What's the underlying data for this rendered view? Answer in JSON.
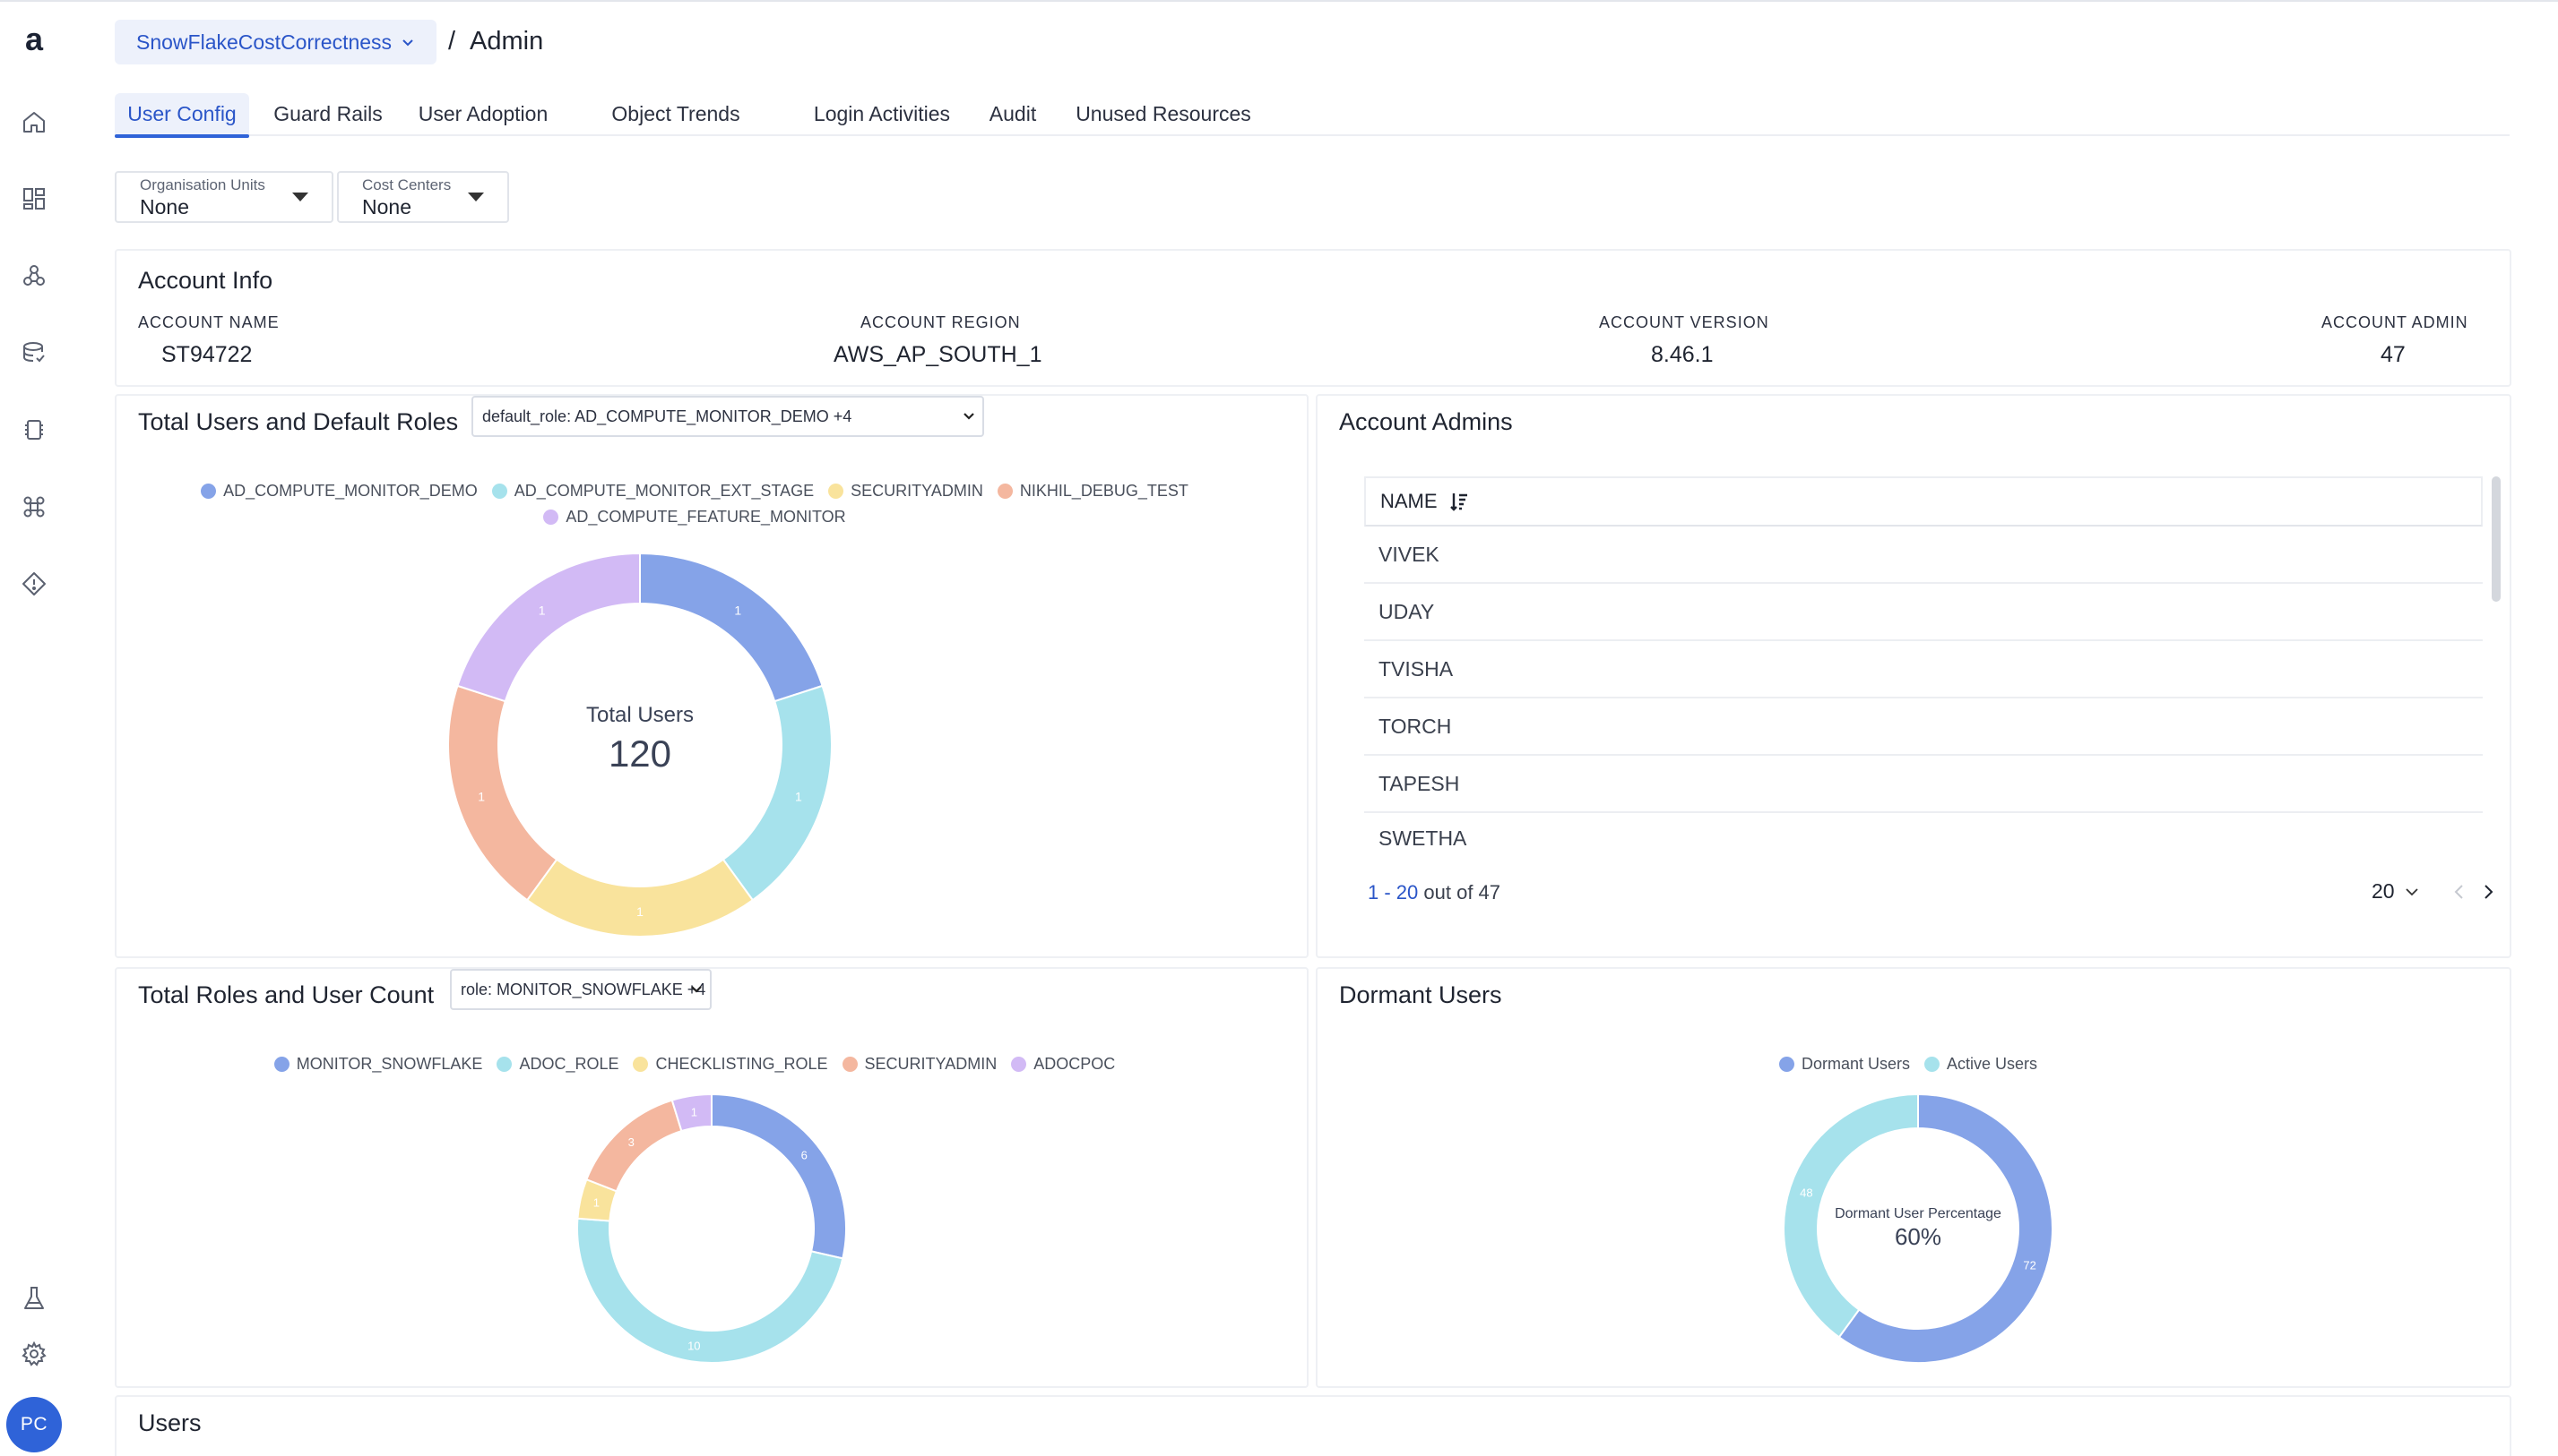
{
  "app": {
    "logo_letter": "a",
    "user_initials": "PC"
  },
  "nav_icons": [
    "home-icon",
    "dashboard-icon",
    "nodes-icon",
    "database-icon",
    "cpu-icon",
    "command-icon",
    "diamond-icon",
    "flask-icon",
    "gear-icon"
  ],
  "breadcrumb": {
    "workspace": "SnowFlakeCostCorrectness",
    "separator": "/",
    "page": "Admin"
  },
  "tabs": [
    {
      "label": "User Config",
      "active": true
    },
    {
      "label": "Guard Rails",
      "active": false
    },
    {
      "label": "User Adoption",
      "active": false
    },
    {
      "label": "Object Trends",
      "active": false
    },
    {
      "label": "Login Activities",
      "active": false
    },
    {
      "label": "Audit",
      "active": false
    },
    {
      "label": "Unused Resources",
      "active": false
    }
  ],
  "filters": {
    "org_units": {
      "label": "Organisation Units",
      "value": "None"
    },
    "cost_centers": {
      "label": "Cost Centers",
      "value": "None"
    }
  },
  "account_info": {
    "title": "Account Info",
    "name_label": "ACCOUNT NAME",
    "name_value": "ST94722",
    "region_label": "ACCOUNT REGION",
    "region_value": "AWS_AP_SOUTH_1",
    "version_label": "ACCOUNT VERSION",
    "version_value": "8.46.1",
    "admin_label": "ACCOUNT ADMIN",
    "admin_value": "47"
  },
  "total_users_card": {
    "title": "Total Users and Default Roles",
    "select_value": "default_role: AD_COMPUTE_MONITOR_DEMO +4"
  },
  "account_admins": {
    "title": "Account Admins",
    "column": "NAME",
    "rows": [
      "VIVEK",
      "UDAY",
      "TVISHA",
      "TORCH",
      "TAPESH",
      "SWETHA"
    ],
    "pager_range": "1 - 20",
    "pager_of": "out of 47",
    "page_size": "20"
  },
  "roles_card": {
    "title": "Total Roles and User Count",
    "select_value": "role: MONITOR_SNOWFLAKE +4"
  },
  "dormant_card": {
    "title": "Dormant Users"
  },
  "users_card": {
    "title": "Users"
  },
  "chart_data": [
    {
      "type": "pie",
      "title": "Total Users and Default Roles",
      "center_label": "Total Users",
      "center_value": "120",
      "categories": [
        "AD_COMPUTE_MONITOR_DEMO",
        "AD_COMPUTE_MONITOR_EXT_STAGE",
        "SECURITYADMIN",
        "NIKHIL_DEBUG_TEST",
        "AD_COMPUTE_FEATURE_MONITOR"
      ],
      "values": [
        1,
        1,
        1,
        1,
        1
      ],
      "colors": [
        "#85a3e8",
        "#a6e2ec",
        "#f9e39c",
        "#f4b79f",
        "#d2baf5"
      ],
      "legend": "top"
    },
    {
      "type": "pie",
      "title": "Total Roles and User Count",
      "categories": [
        "MONITOR_SNOWFLAKE",
        "ADOC_ROLE",
        "CHECKLISTING_ROLE",
        "SECURITYADMIN",
        "ADOCPOC"
      ],
      "values": [
        6,
        10,
        1,
        3,
        1
      ],
      "colors": [
        "#85a3e8",
        "#a6e2ec",
        "#f9e39c",
        "#f4b79f",
        "#d2baf5"
      ],
      "legend": "top"
    },
    {
      "type": "pie",
      "title": "Dormant Users",
      "center_label": "Dormant User Percentage",
      "center_value": "60%",
      "categories": [
        "Dormant Users",
        "Active Users"
      ],
      "values": [
        72,
        48
      ],
      "colors": [
        "#85a3e8",
        "#a6e2ec"
      ],
      "legend": "top"
    }
  ]
}
